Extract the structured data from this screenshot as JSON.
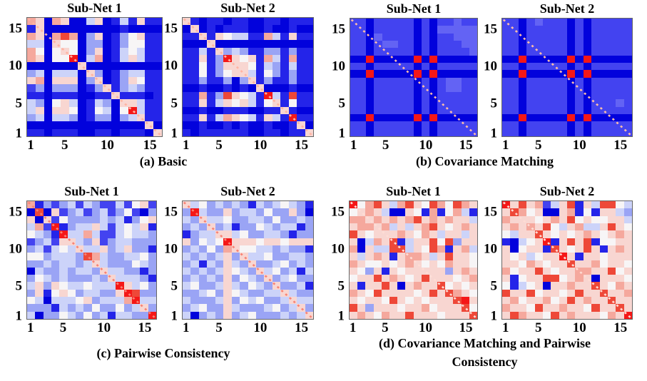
{
  "chart_data": {
    "type": "heatmap",
    "note": "Figure with 4 panels (a-d), each containing two 16x16 correlation heatmaps. Grid cells are encoded with one character per cell; codes map to palette colors / approximate correlation values (blue = negative, white = 0, red = positive). Grid rows are listed top-to-bottom (matrix row 16 first). A dashed diagonal line runs from top-left to bottom-right of each heatmap.",
    "colormap": "blue-white-red diverging",
    "x_range": [
      1,
      16
    ],
    "y_range": [
      1,
      16
    ],
    "palette": {
      "0": "#0202dc",
      "1": "#2424e9",
      "2": "#4343f0",
      "3": "#6363f4",
      "4": "#9aa4f5",
      "5": "#ccd3f9",
      "6": "#f7f5f6",
      "7": "#f8d6d1",
      "8": "#f5a89d",
      "9": "#ee4838",
      "A": "#f51717"
    },
    "value_levels": {
      "0": -1.0,
      "1": -0.75,
      "2": -0.55,
      "3": -0.45,
      "4": -0.3,
      "5": -0.15,
      "6": 0.0,
      "7": 0.2,
      "8": 0.45,
      "9": 0.75,
      "A": 1.0
    },
    "panels": [
      {
        "key": "a",
        "caption": "(a) Basic",
        "subplots": [
          {
            "title": "Sub-Net 1",
            "xticks": [
              1,
              5,
              10,
              15
            ],
            "yticks": [
              15,
              10,
              5,
              1
            ],
            "diag_color": "#ffb3a2",
            "grid": [
              "8708700570151711",
              "1700000000010000",
              "8708980470146711",
              "5507660440146611",
              "8606760470156511",
              "87066A0580157511",
              "0000007000000000",
              "4505550740145511",
              "7807770470147611",
              "2404440147145411",
              "1101110011711101",
              "5406750154077511",
              "570776016506A511",
              "4505540144045711",
              "0000000000000070",
              "1101110011011107"
            ]
          },
          {
            "title": "Sub-Net 2",
            "xticks": [
              1,
              5,
              10,
              15
            ],
            "yticks": [
              15,
              10,
              5,
              1
            ],
            "diag_color": "#ffb3a2",
            "grid": [
              "7101101100110111",
              "0701011100100100",
              "1171765511851711",
              "0007000000000000",
              "1151745411441411",
              "11714A7671851811",
              "1161477761541511",
              "1161467751641411",
              "1141140471411411",
              "0010010107000100",
              "1181497651A51911",
              "1171576751671611",
              "0010011100117100",
              "1171587651751A11",
              "0010010100100170",
              "1011111100110117"
            ]
          }
        ]
      },
      {
        "key": "b",
        "caption": "(b) Covariance Matching",
        "subplots": [
          {
            "title": "Sub-Net 1",
            "xticks": [
              1,
              5,
              10,
              15
            ],
            "yticks": [
              15,
              10,
              5,
              1
            ],
            "diag_color": "#ffbfa8",
            "grid": [
              "2202222202022322",
              "2202222202033333",
              "2203222202022333",
              "2202332202022233",
              "2202222202022223",
              "00A00000A0A00000",
              "2202222202022222",
              "00A00000A0A00000",
              "2202222202023322",
              "2202222202023322",
              "2202222202022222",
              "2202222202022222",
              "2202222202022222",
              "00A00000A0A00000",
              "2202222202022222",
              "2202222202022222"
            ]
          },
          {
            "title": "Sub-Net 2",
            "xticks": [
              1,
              5,
              10,
              15
            ],
            "yticks": [
              15,
              10,
              5,
              1
            ],
            "diag_color": "#ffbfa8",
            "grid": [
              "2202322202022222",
              "2202222202022222",
              "2202222202022222",
              "2202222202022222",
              "2202222202022222",
              "00A00000A0A00000",
              "2202222202022222",
              "00A00000A0A00000",
              "2202222202022222",
              "2202222202022222",
              "2202222202022222",
              "2202222202022232",
              "2202222202022222",
              "00A00000A0A00000",
              "2202222202022222",
              "2202222202022222"
            ]
          }
        ]
      },
      {
        "key": "c",
        "caption": "(c) Pairwise Consistency",
        "subplots": [
          {
            "title": "Sub-Net 1",
            "xticks": [
              1,
              5,
              10,
              15
            ],
            "yticks": [
              15,
              10,
              5,
              1
            ],
            "diag_color": "#f88274",
            "grid": [
              "8142452542252672",
              "0907245245246204",
              "7072644445451467",
              "582A145575256571",
              "6541A55852256554",
              "2452775472455444",
              "4525657557457441",
              "6645554985445564",
              "4454554575444654",
              "0544545547554414",
              "4654544454755541",
              "57476556555A7564",
              "471676455447A944",
              "6505556745558A55",
              "4441545464464574",
              "504465464515544A"
            ]
          },
          {
            "title": "Sub-Net 2",
            "xticks": [
              1,
              5,
              10,
              15
            ],
            "yticks": [
              15,
              10,
              5,
              1
            ],
            "diag_color": "#f88274",
            "grid": [
              "7564545415456541",
              "4A54474554644740",
              "5475564455464454",
              "4547451446545514",
              "1455775644554144",
              "74656A7776776777",
              "4546487665545441",
              "5454574755644554",
              "4515475474456454",
              "5454576547564515",
              "4545474654745644",
              "5644575465474451",
              "4456476544557544",
              "5444574656445755",
              "4564475444564574",
              "5045474564445457"
            ]
          }
        ]
      },
      {
        "key": "d",
        "caption_line1": "(d) Covariance Matching and  Pairwise",
        "caption_line2": "Consistency",
        "subplots": [
          {
            "title": "Sub-Net 1",
            "xticks": [
              1,
              5,
              10,
              15
            ],
            "yticks": [
              15,
              10,
              5,
              1
            ],
            "diag_color": "#ffdcd4",
            "grid": [
              "A689758976986987",
              "6787500761816851",
              "8878787897878775",
              "7887857578976787",
              "9767778768757757",
              "7058791577969477",
              "8075599576981785",
              "7578717887579776",
              "8766767876768776",
              "7647176777774787",
              "6779787679777678",
              "7177970787796767",
              "8769777767979876",
              "76776976767779A7",
              "9747776778677796",
              "7876877977767779"
            ]
          },
          {
            "title": "Sub-Net 2",
            "xticks": [
              1,
              5,
              10,
              15
            ],
            "yticks": [
              15,
              10,
              5,
              1
            ],
            "diag_color": "#ffdcd4",
            "grid": [
              "A797825791759965",
              "7986700781617754",
              "8777678796766775",
              "7878796578557976",
              "6577976767876787",
              "10567A1797916677",
              "7067719767971787",
              "7675677A71776777",
              "7768767797786776",
              "8677976778877967",
              "7167799678707776",
              "6156707787797687",
              "9779677679779778",
              "7867786797877977",
              "8776977877697797",
              "798776978777687A"
            ]
          }
        ]
      }
    ]
  }
}
